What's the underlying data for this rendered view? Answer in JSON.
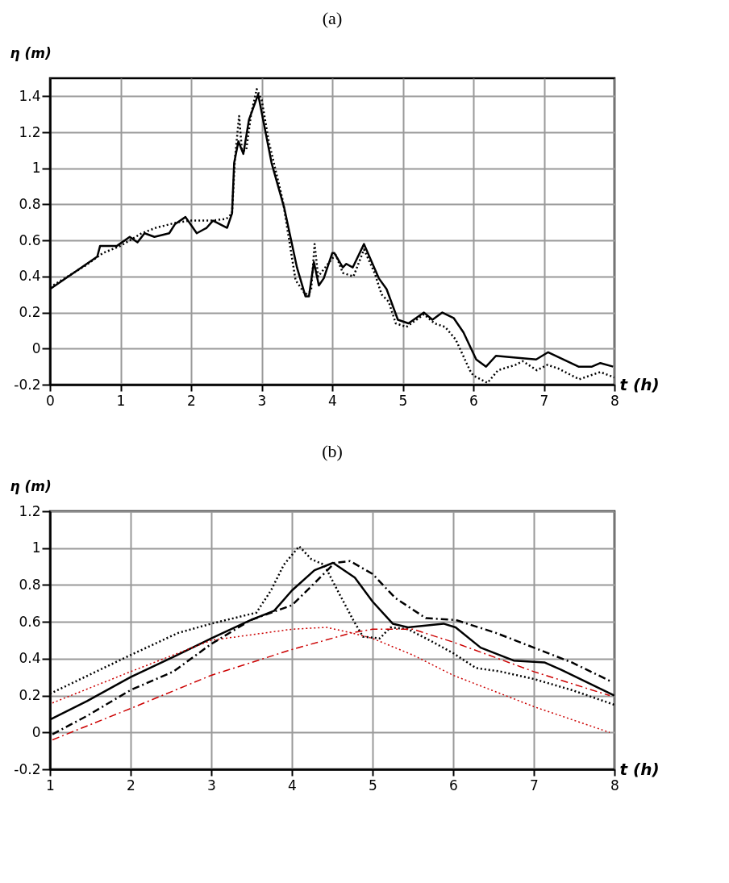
{
  "chart_data": [
    {
      "type": "line",
      "title": "(a)",
      "xlabel": "t (h)",
      "ylabel": "η (m)",
      "xlim": [
        0,
        8
      ],
      "xticks": [
        0,
        1,
        2,
        3,
        4,
        5,
        6,
        7,
        8
      ],
      "ylim": [
        -0.2,
        1.5
      ],
      "yticks": [
        -0.2,
        0,
        0.2,
        0.4,
        0.6,
        0.8,
        1,
        1.2,
        1.4
      ],
      "grid": true,
      "series": [
        {
          "color": "#000000",
          "line_style": "solid",
          "x": [
            0,
            0.67,
            0.71,
            0.95,
            1.13,
            1.24,
            1.34,
            1.48,
            1.69,
            1.77,
            1.92,
            2.08,
            2.22,
            2.31,
            2.51,
            2.58,
            2.61,
            2.67,
            2.74,
            2.82,
            2.95,
            3.14,
            3.32,
            3.5,
            3.62,
            3.67,
            3.74,
            3.81,
            3.88,
            4.0,
            4.03,
            4.15,
            4.2,
            4.29,
            4.45,
            4.66,
            4.77,
            4.93,
            5.08,
            5.3,
            5.42,
            5.56,
            5.72,
            5.86,
            6.04,
            6.18,
            6.32,
            6.6,
            6.89,
            7.06,
            7.49,
            7.68,
            7.8,
            7.98
          ],
          "values": [
            0.33,
            0.51,
            0.57,
            0.57,
            0.62,
            0.59,
            0.64,
            0.62,
            0.64,
            0.69,
            0.73,
            0.64,
            0.67,
            0.71,
            0.67,
            0.75,
            1.03,
            1.15,
            1.08,
            1.27,
            1.41,
            1.03,
            0.78,
            0.45,
            0.29,
            0.29,
            0.48,
            0.35,
            0.39,
            0.53,
            0.53,
            0.45,
            0.47,
            0.45,
            0.58,
            0.39,
            0.33,
            0.16,
            0.14,
            0.2,
            0.16,
            0.2,
            0.17,
            0.09,
            -0.06,
            -0.1,
            -0.04,
            -0.05,
            -0.06,
            -0.02,
            -0.1,
            -0.1,
            -0.08,
            -0.1
          ]
        },
        {
          "color": "#000000",
          "line_style": "dotted",
          "x": [
            0,
            0.5,
            0.75,
            1,
            1.3,
            1.5,
            1.8,
            2.0,
            2.3,
            2.5,
            2.58,
            2.62,
            2.68,
            2.72,
            2.78,
            2.85,
            2.93,
            3.0,
            3.1,
            3.3,
            3.48,
            3.62,
            3.7,
            3.75,
            3.8,
            3.9,
            4.0,
            4.05,
            4.15,
            4.3,
            4.45,
            4.6,
            4.7,
            4.8,
            4.9,
            5.05,
            5.3,
            5.45,
            5.6,
            5.75,
            5.95,
            6.0,
            6.2,
            6.35,
            6.6,
            6.7,
            6.9,
            7.05,
            7.2,
            7.5,
            7.8,
            8
          ],
          "values": [
            0.34,
            0.46,
            0.53,
            0.57,
            0.64,
            0.67,
            0.7,
            0.71,
            0.71,
            0.72,
            0.75,
            1.05,
            1.29,
            1.1,
            1.1,
            1.3,
            1.44,
            1.38,
            1.15,
            0.82,
            0.38,
            0.3,
            0.32,
            0.58,
            0.4,
            0.45,
            0.5,
            0.52,
            0.42,
            0.4,
            0.55,
            0.42,
            0.3,
            0.26,
            0.14,
            0.12,
            0.19,
            0.14,
            0.12,
            0.05,
            -0.12,
            -0.15,
            -0.19,
            -0.12,
            -0.09,
            -0.07,
            -0.12,
            -0.09,
            -0.11,
            -0.17,
            -0.13,
            -0.16
          ]
        }
      ]
    },
    {
      "type": "line",
      "title": "(b)",
      "xlabel": "t (h)",
      "ylabel": "η (m)",
      "xlim": [
        1,
        8
      ],
      "xticks": [
        1,
        2,
        3,
        4,
        5,
        6,
        7,
        8
      ],
      "ylim": [
        -0.2,
        1.2
      ],
      "yticks": [
        -0.2,
        0,
        0.2,
        0.4,
        0.6,
        0.8,
        1,
        1.2
      ],
      "grid": true,
      "series": [
        {
          "color": "#000000",
          "line_style": "solid",
          "x": [
            1,
            1.46,
            2,
            2.53,
            3,
            3.49,
            3.78,
            4,
            4.28,
            4.51,
            4.78,
            5,
            5.25,
            5.44,
            5.88,
            6.03,
            6.34,
            6.75,
            7.13,
            7.34,
            8
          ],
          "values": [
            0.07,
            0.17,
            0.3,
            0.41,
            0.51,
            0.61,
            0.66,
            0.77,
            0.88,
            0.92,
            0.84,
            0.71,
            0.59,
            0.57,
            0.59,
            0.57,
            0.46,
            0.39,
            0.38,
            0.34,
            0.2
          ]
        },
        {
          "color": "#000000",
          "line_style": "dotted",
          "x": [
            1,
            2,
            2.59,
            3,
            3.56,
            3.74,
            3.9,
            4.09,
            4.24,
            4.4,
            4.59,
            4.76,
            4.88,
            5.09,
            5.22,
            5.44,
            5.75,
            6,
            6.28,
            6.59,
            7,
            7.47,
            8
          ],
          "values": [
            0.21,
            0.42,
            0.54,
            0.59,
            0.65,
            0.77,
            0.91,
            1.01,
            0.94,
            0.91,
            0.75,
            0.61,
            0.52,
            0.51,
            0.57,
            0.56,
            0.49,
            0.43,
            0.35,
            0.33,
            0.29,
            0.23,
            0.15
          ]
        },
        {
          "color": "#000000",
          "line_style": "dashed",
          "x": [
            1.03,
            1.46,
            2,
            2.53,
            3,
            3.49,
            4,
            4.28,
            4.53,
            4.72,
            5,
            5.28,
            5.66,
            6.03,
            6.53,
            7,
            7.47,
            7.94
          ],
          "values": [
            -0.01,
            0.09,
            0.23,
            0.33,
            0.48,
            0.61,
            0.69,
            0.81,
            0.92,
            0.93,
            0.86,
            0.73,
            0.62,
            0.61,
            0.54,
            0.46,
            0.38,
            0.28
          ]
        },
        {
          "color": "#cc0000",
          "line_style": "dotted",
          "x": [
            1.03,
            2,
            3,
            4,
            4.43,
            4.74,
            5,
            5.5,
            6,
            6.59,
            7,
            7.94
          ],
          "values": [
            0.16,
            0.33,
            0.5,
            0.56,
            0.57,
            0.54,
            0.51,
            0.42,
            0.31,
            0.21,
            0.14,
            0.0
          ]
        },
        {
          "color": "#cc0000",
          "line_style": "dashed",
          "x": [
            1.03,
            2,
            3,
            4,
            4.74,
            5,
            5.5,
            6,
            7,
            7.94
          ],
          "values": [
            -0.04,
            0.13,
            0.31,
            0.45,
            0.54,
            0.56,
            0.56,
            0.49,
            0.33,
            0.2
          ]
        }
      ]
    }
  ]
}
